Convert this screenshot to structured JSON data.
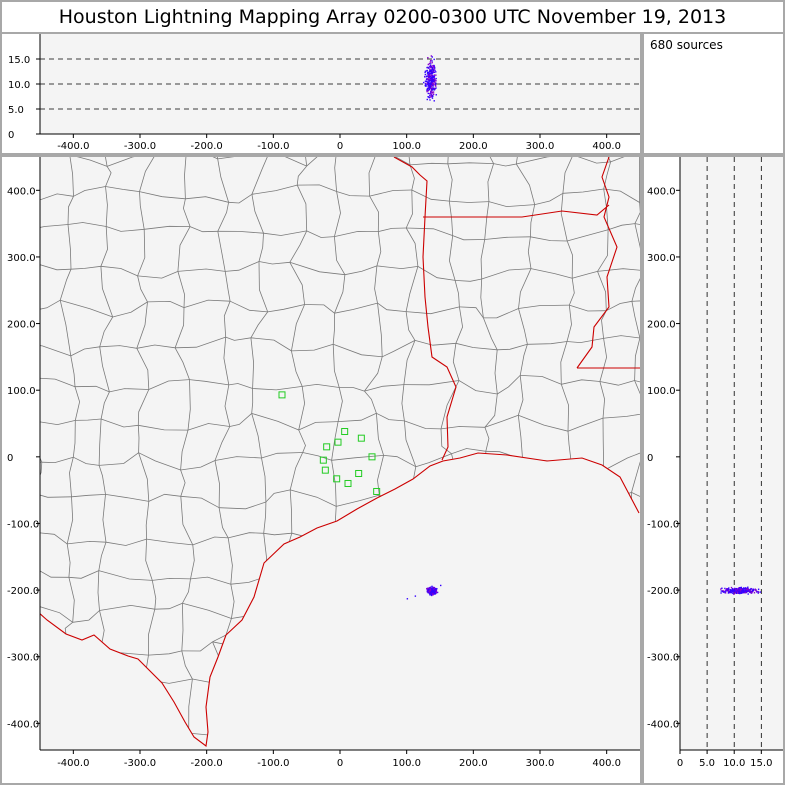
{
  "title": "Houston Lightning Mapping Array   0200-0300 UTC  November 19, 2013",
  "source_count": "680 sources",
  "colors": {
    "background": "#f4f4f4",
    "state_border": "#cc0000",
    "county_border": "#7a7a7a",
    "station": "#22cc22",
    "source_early": "#3300ff",
    "source_late": "#8800cc"
  },
  "chart_data": [
    {
      "id": "alt-vs-ew",
      "type": "scatter",
      "xlim": [
        -450,
        450
      ],
      "ylim": [
        0,
        20
      ],
      "x_ticks": [
        -400,
        -300,
        -200,
        -100,
        0,
        100,
        200,
        300,
        400
      ],
      "x_tick_labels": [
        "-400.0",
        "-300.0",
        "-200.0",
        "-100.0",
        "0",
        "100.0",
        "200.0",
        "300.0",
        "400.0"
      ],
      "y_ticks": [
        0,
        5,
        10,
        15
      ],
      "y_tick_labels": [
        "0",
        "5.0",
        "10.0",
        "15.0"
      ],
      "dashed_lines": [
        5,
        10,
        15
      ],
      "source_cluster": {
        "x_center": 135,
        "x_spread": 5,
        "y_center": 11,
        "y_spread": 2.3,
        "y_min": 4.5,
        "y_max": 16
      }
    },
    {
      "id": "plan-view",
      "type": "scatter",
      "xlim": [
        -450,
        450
      ],
      "ylim": [
        -440,
        450
      ],
      "x_ticks": [
        -400,
        -300,
        -200,
        -100,
        0,
        100,
        200,
        300,
        400
      ],
      "x_tick_labels": [
        "-400.0",
        "-300.0",
        "-200.0",
        "-100.0",
        "0",
        "100.0",
        "200.0",
        "300.0",
        "400.0"
      ],
      "y_ticks": [
        -400,
        -300,
        -200,
        -100,
        0,
        100,
        200,
        300,
        400
      ],
      "y_tick_labels": [
        "-400.0",
        "-300.0",
        "-200.0",
        "-100.0",
        "0",
        "100.0",
        "200.0",
        "300.0",
        "400.0"
      ],
      "stations": [
        [
          -87,
          93
        ],
        [
          -20,
          15
        ],
        [
          -3,
          22
        ],
        [
          7,
          38
        ],
        [
          32,
          28
        ],
        [
          -22,
          -20
        ],
        [
          -5,
          -33
        ],
        [
          12,
          -40
        ],
        [
          28,
          -25
        ],
        [
          48,
          0
        ],
        [
          55,
          -52
        ],
        [
          -25,
          -5
        ]
      ],
      "source_cluster": {
        "x_center": 137,
        "y_center": -200,
        "spread": 4.5,
        "outliers": [
          [
            100,
            -212
          ],
          [
            112,
            -208
          ],
          [
            150,
            -192
          ]
        ]
      }
    },
    {
      "id": "ns-vs-alt",
      "type": "scatter",
      "xlim": [
        0,
        19
      ],
      "ylim": [
        -440,
        450
      ],
      "x_ticks": [
        0,
        5,
        10,
        15
      ],
      "x_tick_labels": [
        "0",
        "5.0",
        "10.0",
        "15.0"
      ],
      "y_ticks": [
        -400,
        -300,
        -200,
        -100,
        0,
        100,
        200,
        300,
        400
      ],
      "y_tick_labels": [
        "-400.0",
        "-300.0",
        "-200.0",
        "-100.0",
        "0",
        "100.0",
        "200.0",
        "300.0",
        "400.0"
      ],
      "dashed_lines": [
        5,
        10,
        15
      ],
      "source_cluster": {
        "x_center": 11,
        "x_spread": 2.2,
        "x_min": 4.5,
        "x_max": 16,
        "y_center": -200,
        "y_spread": 3
      }
    }
  ]
}
